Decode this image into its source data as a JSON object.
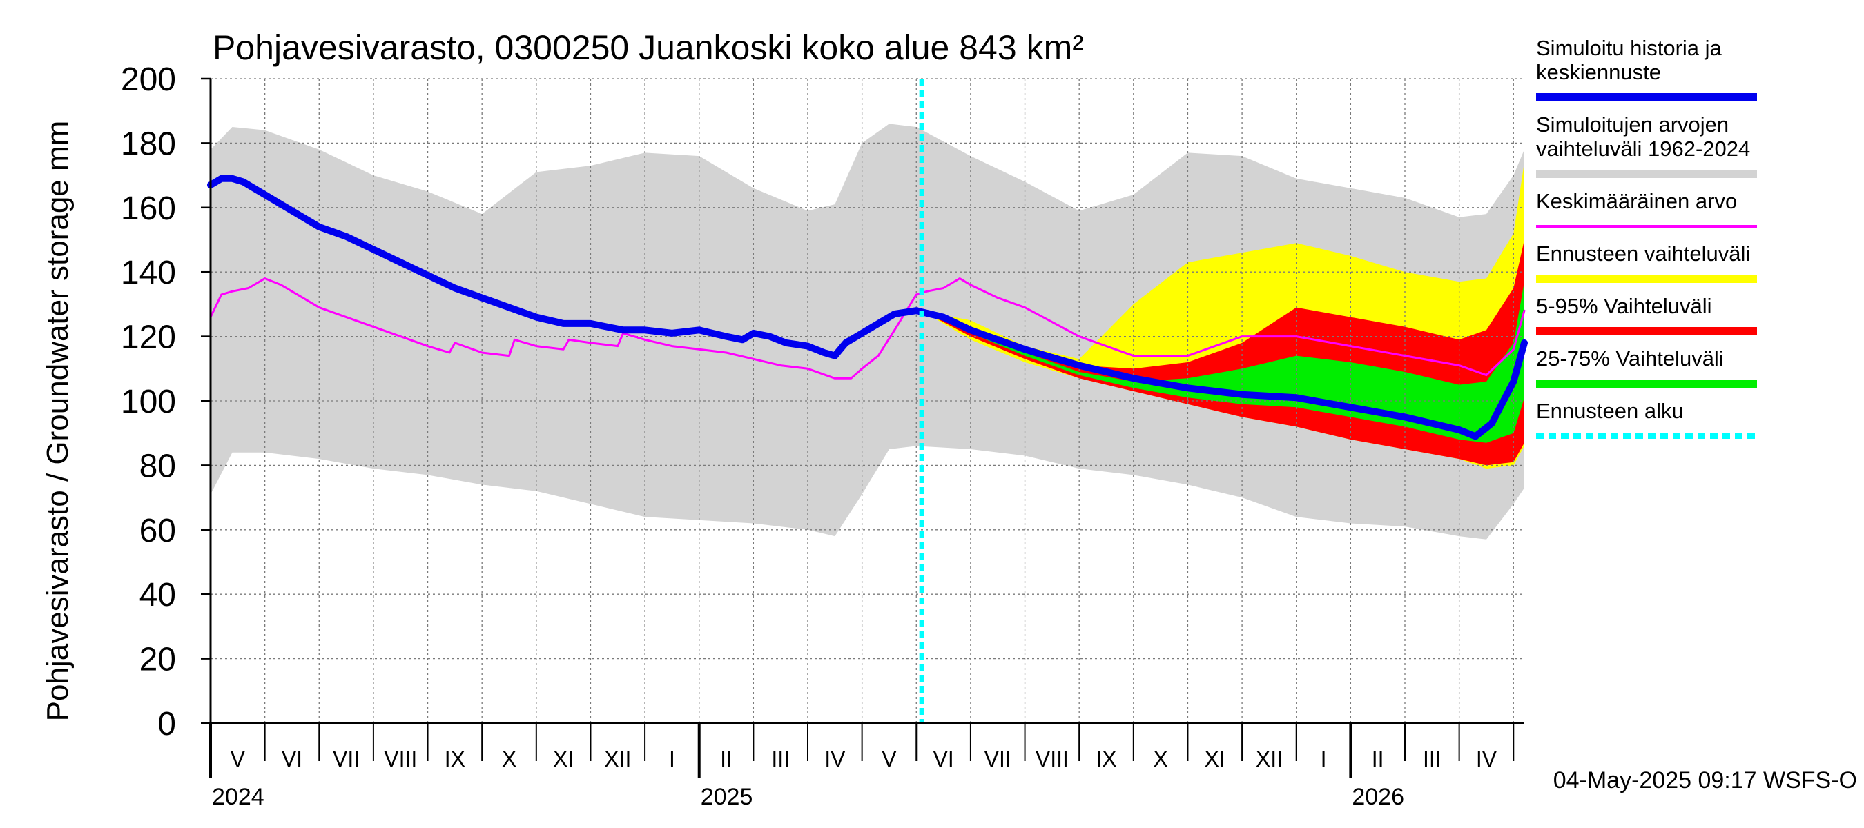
{
  "chart_data": {
    "type": "area",
    "title": "Pohjavesivarasto, 0300250 Juankoski koko alue 843 km²",
    "ylabel": "Pohjavesivarasto / Groundwater storage   mm",
    "ylim": [
      0,
      200
    ],
    "yticks": [
      0,
      20,
      40,
      60,
      80,
      100,
      120,
      140,
      160,
      180,
      200
    ],
    "x_unit": "months since 2024-04-01",
    "xlim": [
      0,
      24.2
    ],
    "month_labels": [
      {
        "label": "V",
        "x": 0.5
      },
      {
        "label": "VI",
        "x": 1.5
      },
      {
        "label": "VII",
        "x": 2.5
      },
      {
        "label": "VIII",
        "x": 3.5
      },
      {
        "label": "IX",
        "x": 4.5
      },
      {
        "label": "X",
        "x": 5.5
      },
      {
        "label": "XI",
        "x": 6.5
      },
      {
        "label": "XII",
        "x": 7.5
      },
      {
        "label": "I",
        "x": 8.5
      },
      {
        "label": "II",
        "x": 9.5
      },
      {
        "label": "III",
        "x": 10.5
      },
      {
        "label": "IV",
        "x": 11.5
      },
      {
        "label": "V",
        "x": 12.5
      },
      {
        "label": "VI",
        "x": 13.5
      },
      {
        "label": "VII",
        "x": 14.5
      },
      {
        "label": "VIII",
        "x": 15.5
      },
      {
        "label": "IX",
        "x": 16.5
      },
      {
        "label": "X",
        "x": 17.5
      },
      {
        "label": "XI",
        "x": 18.5
      },
      {
        "label": "XII",
        "x": 19.5
      },
      {
        "label": "I",
        "x": 20.5
      },
      {
        "label": "II",
        "x": 21.5
      },
      {
        "label": "III",
        "x": 22.5
      },
      {
        "label": "IV",
        "x": 23.5
      }
    ],
    "year_labels": [
      {
        "label": "2024",
        "x": 0
      },
      {
        "label": "2025",
        "x": 9
      },
      {
        "label": "2026",
        "x": 21
      }
    ],
    "forecast_start_x": 13.1,
    "series": [
      {
        "name": "Simuloitujen arvojen vaihteluväli 1962-2024",
        "kind": "band",
        "color": "#d3d3d3",
        "x": [
          0,
          0.4,
          1.0,
          2.0,
          3.0,
          4.0,
          5.0,
          6.0,
          7.0,
          8.0,
          9.0,
          10.0,
          11.0,
          11.5,
          12.0,
          12.5,
          13.0,
          14.0,
          15.0,
          16.0,
          17.0,
          18.0,
          19.0,
          20.0,
          21.0,
          22.0,
          23.0,
          23.5,
          24.0,
          24.2
        ],
        "upper": [
          178,
          185,
          184,
          178,
          170,
          165,
          158,
          171,
          173,
          177,
          176,
          166,
          159,
          161,
          180,
          186,
          185,
          176,
          168,
          159,
          164,
          177,
          176,
          169,
          166,
          163,
          157,
          158,
          170,
          178
        ],
        "lower": [
          71,
          84,
          84,
          82,
          79,
          77,
          74,
          72,
          68,
          64,
          63,
          62,
          60,
          58,
          71,
          85,
          86,
          85,
          83,
          79,
          77,
          74,
          70,
          64,
          62,
          61,
          58,
          57,
          68,
          73
        ]
      },
      {
        "name": "Ennusteen vaihteluväli",
        "kind": "band",
        "color": "#ffff00",
        "x": [
          13.1,
          14,
          15,
          16,
          17,
          18,
          19,
          20,
          21,
          22,
          23,
          23.5,
          24,
          24.2
        ],
        "upper": [
          128,
          125,
          117,
          113,
          130,
          143,
          146,
          149,
          145,
          140,
          137,
          138,
          152,
          174
        ],
        "lower": [
          128,
          119,
          112,
          107,
          103,
          99,
          95,
          92,
          88,
          85,
          82,
          79,
          80,
          86
        ]
      },
      {
        "name": "5-95% Vaihteluväli",
        "kind": "band",
        "color": "#ff0000",
        "x": [
          13.1,
          14,
          15,
          16,
          17,
          18,
          19,
          20,
          21,
          22,
          23,
          23.5,
          24,
          24.2
        ],
        "upper": [
          128,
          123,
          116,
          111,
          110,
          112,
          118,
          129,
          126,
          123,
          119,
          122,
          135,
          150
        ],
        "lower": [
          128,
          120,
          113,
          107,
          103,
          99,
          95,
          92,
          88,
          85,
          82,
          80,
          81,
          87
        ]
      },
      {
        "name": "25-75% Vaihteluväli",
        "kind": "band",
        "color": "#00ee00",
        "x": [
          13.1,
          14,
          15,
          16,
          17,
          18,
          19,
          20,
          21,
          22,
          23,
          23.5,
          24,
          24.2
        ],
        "upper": [
          128,
          122,
          115,
          109,
          106,
          107,
          110,
          114,
          112,
          109,
          105,
          106,
          118,
          137
        ],
        "lower": [
          128,
          121,
          114,
          108,
          104,
          101,
          99,
          98,
          95,
          92,
          88,
          87,
          90,
          101
        ]
      },
      {
        "name": "Keskimääräinen arvo",
        "kind": "line",
        "color": "#ff00ff",
        "width": 3,
        "x": [
          0,
          0.2,
          0.4,
          0.7,
          1.0,
          1.3,
          1.6,
          2.0,
          3.0,
          4.0,
          4.4,
          4.5,
          5.0,
          5.5,
          5.6,
          6.0,
          6.5,
          6.6,
          7.0,
          7.5,
          7.6,
          8.0,
          8.5,
          9.0,
          9.5,
          10.0,
          10.5,
          11.0,
          11.5,
          11.8,
          12.0,
          12.3,
          12.6,
          13.0,
          13.2,
          13.5,
          13.8,
          14.0,
          14.5,
          15.0,
          16.0,
          17.0,
          18.0,
          19.0,
          20.0,
          21.0,
          22.0,
          23.0,
          23.5,
          24.0,
          24.2
        ],
        "y": [
          126,
          133,
          134,
          135,
          138,
          136,
          133,
          129,
          123,
          117,
          115,
          118,
          115,
          114,
          119,
          117,
          116,
          119,
          118,
          117,
          121,
          119,
          117,
          116,
          115,
          113,
          111,
          110,
          107,
          107,
          110,
          114,
          122,
          133,
          134,
          135,
          138,
          136,
          132,
          129,
          120,
          114,
          114,
          120,
          120,
          117,
          114,
          111,
          108,
          116,
          128
        ]
      },
      {
        "name": "Simuloitu historia ja keskiennuste",
        "kind": "line",
        "color": "#0000ee",
        "width": 10,
        "x": [
          0,
          0.2,
          0.4,
          0.6,
          0.8,
          1.0,
          1.2,
          1.5,
          2.0,
          2.5,
          3.0,
          3.5,
          4.0,
          4.5,
          5.0,
          5.5,
          6.0,
          6.5,
          6.8,
          7.0,
          7.3,
          7.6,
          8.0,
          8.5,
          9.0,
          9.5,
          9.8,
          10.0,
          10.3,
          10.6,
          11.0,
          11.3,
          11.5,
          11.7,
          12.0,
          12.3,
          12.6,
          13.0,
          13.5,
          14.0,
          15.0,
          16.0,
          17.0,
          18.0,
          19.0,
          20.0,
          21.0,
          22.0,
          23.0,
          23.3,
          23.6,
          24.0,
          24.2
        ],
        "y": [
          167,
          169,
          169,
          168,
          166,
          164,
          162,
          159,
          154,
          151,
          147,
          143,
          139,
          135,
          132,
          129,
          126,
          124,
          124,
          124,
          123,
          122,
          122,
          121,
          122,
          120,
          119,
          121,
          120,
          118,
          117,
          115,
          114,
          118,
          121,
          124,
          127,
          128,
          126,
          122,
          116,
          111,
          107,
          104,
          102,
          101,
          98,
          95,
          91,
          89,
          93,
          106,
          118
        ]
      },
      {
        "name": "Ennusteen alku",
        "kind": "vline",
        "color": "#00ffff",
        "width": 7,
        "x": 13.1
      }
    ],
    "legend": [
      {
        "text": [
          "Simuloitu historia ja",
          "keskiennuste"
        ],
        "color": "#0000ee",
        "style": "thick"
      },
      {
        "text": [
          "Simuloitujen arvojen",
          "vaihteluväli 1962-2024"
        ],
        "color": "#d3d3d3",
        "style": "thick"
      },
      {
        "text": [
          "Keskimääräinen arvo"
        ],
        "color": "#ff00ff",
        "style": "thin"
      },
      {
        "text": [
          "Ennusteen vaihteluväli"
        ],
        "color": "#ffff00",
        "style": "thick"
      },
      {
        "text": [
          "5-95% Vaihteluväli"
        ],
        "color": "#ff0000",
        "style": "thick"
      },
      {
        "text": [
          "25-75% Vaihteluväli"
        ],
        "color": "#00ee00",
        "style": "thick"
      },
      {
        "text": [
          "Ennusteen alku"
        ],
        "color": "#00ffff",
        "style": "dashed"
      }
    ],
    "legend_position": "right",
    "timestamp": "04-May-2025 09:17 WSFS-O"
  }
}
